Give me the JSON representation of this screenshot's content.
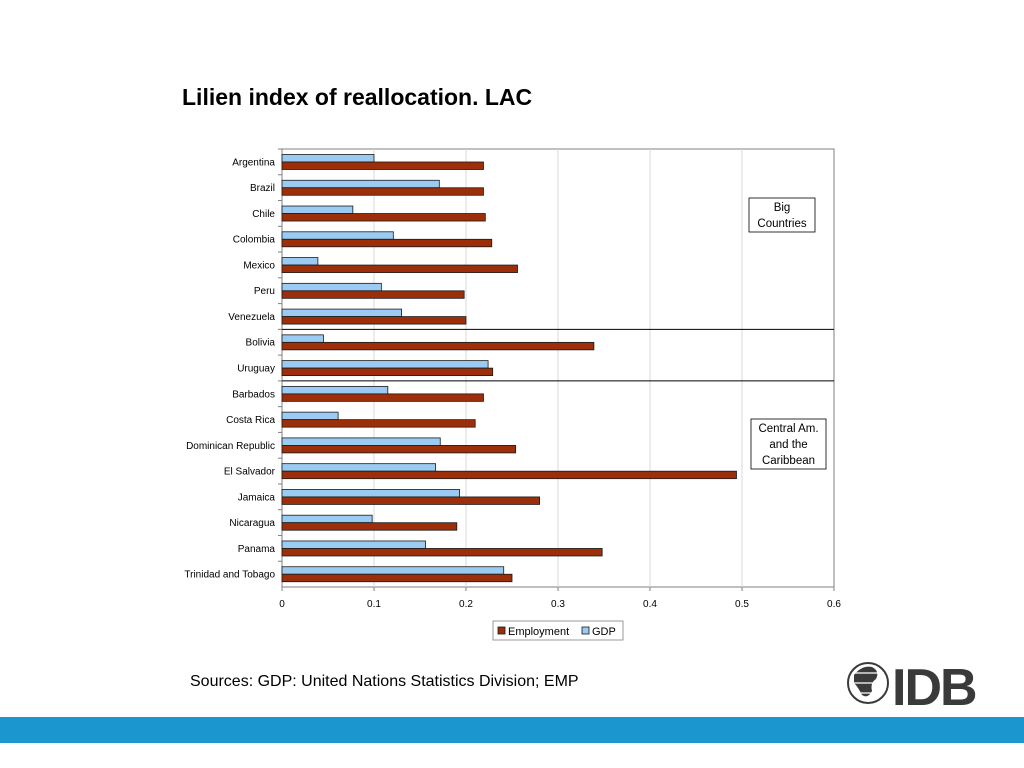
{
  "title": "Lilien index of reallocation. LAC",
  "sources": "Sources: GDP: United Nations Statistics Division; EMP",
  "logo_text": "IDB",
  "colors": {
    "employment": "#9c2f0a",
    "gdp": "#9bcbf2",
    "band": "#1b96cf"
  },
  "chart_data": {
    "type": "bar",
    "orientation": "horizontal",
    "title": "",
    "xlabel": "",
    "ylabel": "",
    "xlim": [
      0,
      0.6
    ],
    "x_ticks": [
      0,
      0.1,
      0.2,
      0.3,
      0.4,
      0.5,
      0.6
    ],
    "x_tick_labels": [
      "0",
      "0.1",
      "0.2",
      "0.3",
      "0.4",
      "0.5",
      "0.6"
    ],
    "grid": "vertical",
    "legend": "bottom",
    "categories": [
      "Argentina",
      "Brazil",
      "Chile",
      "Colombia",
      "Mexico",
      "Peru",
      "Venezuela",
      "Bolivia",
      "Uruguay",
      "Barbados",
      "Costa Rica",
      "Dominican Republic",
      "El Salvador",
      "Jamaica",
      "Nicaragua",
      "Panama",
      "Trinidad and Tobago"
    ],
    "series": [
      {
        "name": "GDP",
        "values": [
          0.1,
          0.171,
          0.077,
          0.121,
          0.039,
          0.108,
          0.13,
          0.045,
          0.224,
          0.115,
          0.061,
          0.172,
          0.167,
          0.193,
          0.098,
          0.156,
          0.241
        ]
      },
      {
        "name": "Employment",
        "values": [
          0.219,
          0.219,
          0.221,
          0.228,
          0.256,
          0.198,
          0.2,
          0.339,
          0.229,
          0.219,
          0.21,
          0.254,
          0.494,
          0.28,
          0.19,
          0.348,
          0.25
        ]
      }
    ],
    "legend_order": [
      "Employment",
      "GDP"
    ],
    "group_dividers_after": [
      "Venezuela",
      "Uruguay"
    ],
    "annotations": [
      {
        "text": [
          "Big",
          "Countries"
        ],
        "group": "big-countries"
      },
      {
        "text": [
          "Central Am.",
          "and  the",
          "Caribbean"
        ],
        "group": "central-america-caribbean"
      }
    ]
  }
}
